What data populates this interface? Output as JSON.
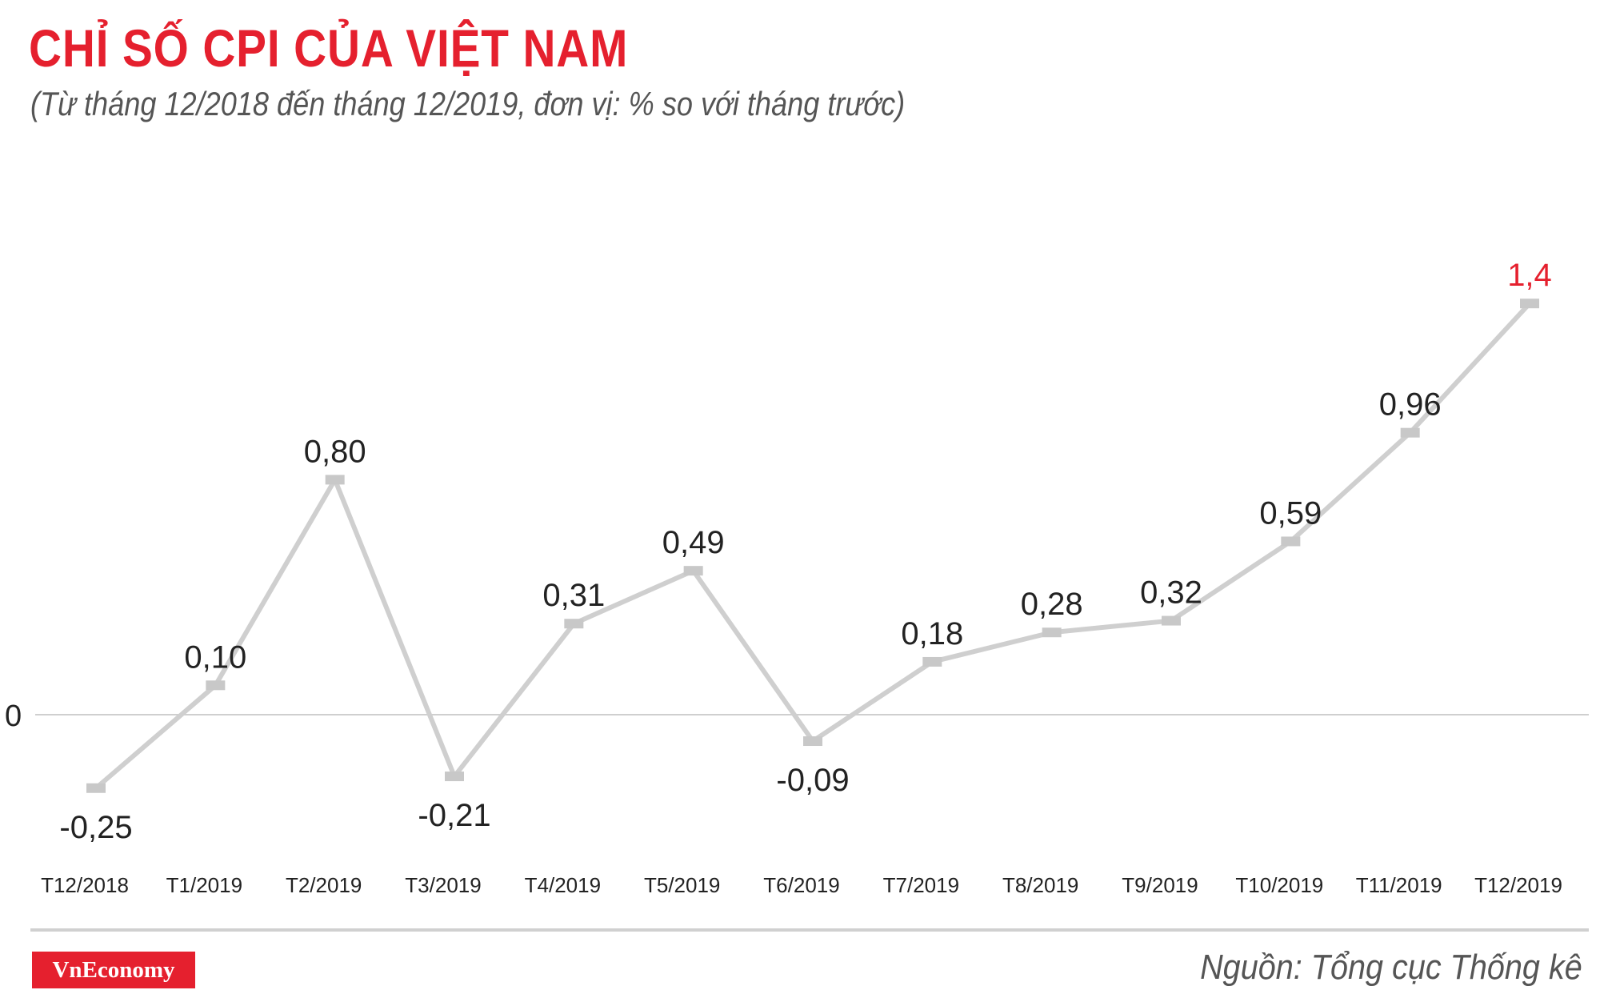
{
  "header": {
    "title": "CHỈ SỐ CPI CỦA VIỆT NAM",
    "subtitle": "(Từ tháng 12/2018 đến tháng 12/2019, đơn vị: % so với tháng trước)"
  },
  "chart_data": {
    "type": "line",
    "categories": [
      "T12/2018",
      "T1/2019",
      "T2/2019",
      "T3/2019",
      "T4/2019",
      "T5/2019",
      "T6/2019",
      "T7/2019",
      "T8/2019",
      "T9/2019",
      "T10/2019",
      "T11/2019",
      "T12/2019"
    ],
    "values": [
      -0.25,
      0.1,
      0.8,
      -0.21,
      0.31,
      0.49,
      -0.09,
      0.18,
      0.28,
      0.32,
      0.59,
      0.96,
      1.4
    ],
    "value_labels": [
      "-0,25",
      "0,10",
      "0,80",
      "-0,21",
      "0,31",
      "0,49",
      "-0,09",
      "0,18",
      "0,28",
      "0,32",
      "0,59",
      "0,96",
      "1,4"
    ],
    "zero_label": "0",
    "ylim": [
      -0.4,
      1.5
    ],
    "grid": false,
    "line_color": "#cfcfcf",
    "label_color": "#222222",
    "highlight_color": "#e5202e",
    "highlight_index": 12
  },
  "footer": {
    "logo_text": "VnEconomy",
    "source": "Nguồn: Tổng cục Thống kê"
  }
}
